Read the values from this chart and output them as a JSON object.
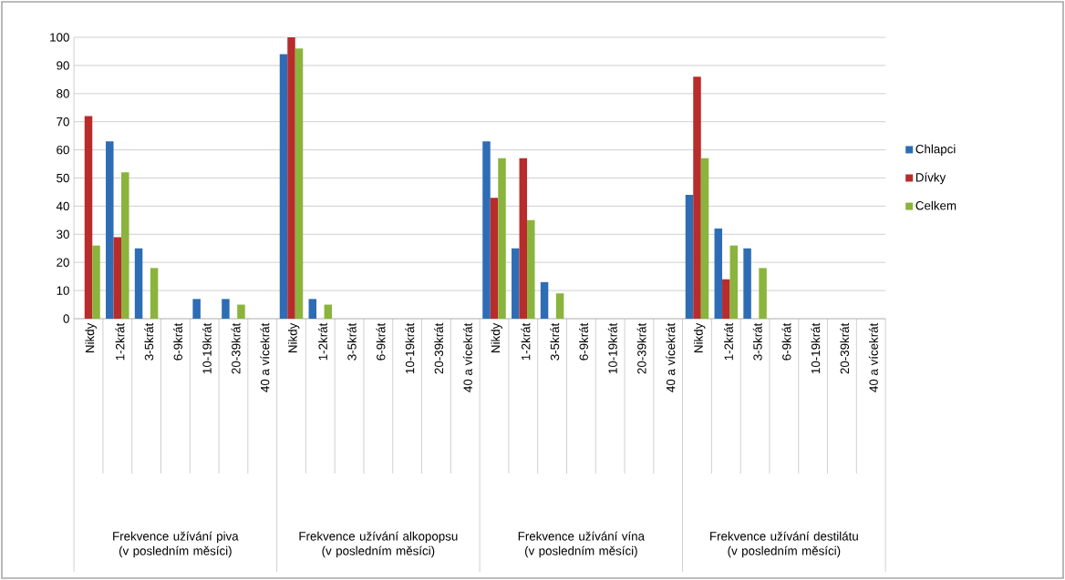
{
  "chart_data": {
    "type": "bar",
    "categories": [
      "Nikdy",
      "1-2krát",
      "3-5krát",
      "6-9krát",
      "10-19krát",
      "20-39krát",
      "40 a vícekrát",
      "Nikdy",
      "1-2krát",
      "3-5krát",
      "6-9krát",
      "10-19krát",
      "20-39krát",
      "40 a vícekrát",
      "Nikdy",
      "1-2krát",
      "3-5krát",
      "6-9krát",
      "10-19krát",
      "20-39krát",
      "40 a vícekrát",
      "Nikdy",
      "1-2krát",
      "3-5krát",
      "6-9krát",
      "10-19krát",
      "20-39krát",
      "40 a vícekrát"
    ],
    "series": [
      {
        "name": "Chlapci",
        "color": "#2e6db5",
        "values": [
          0,
          63,
          25,
          0,
          7,
          7,
          0,
          94,
          7,
          0,
          0,
          0,
          0,
          0,
          63,
          25,
          13,
          0,
          0,
          0,
          0,
          44,
          32,
          25,
          0,
          0,
          0,
          0
        ]
      },
      {
        "name": "Dívky",
        "color": "#b82c2c",
        "values": [
          72,
          29,
          0,
          0,
          0,
          0,
          0,
          100,
          0,
          0,
          0,
          0,
          0,
          0,
          43,
          57,
          0,
          0,
          0,
          0,
          0,
          86,
          14,
          0,
          0,
          0,
          0,
          0
        ]
      },
      {
        "name": "Celkem",
        "color": "#8ab43c",
        "values": [
          26,
          52,
          18,
          0,
          0,
          5,
          0,
          96,
          5,
          0,
          0,
          0,
          0,
          0,
          57,
          35,
          9,
          0,
          0,
          0,
          0,
          57,
          26,
          18,
          0,
          0,
          0,
          0
        ]
      }
    ],
    "annotations": [
      "Frekvence užívání piva (v posledním měsíci)",
      "Frekvence užívání alkopopsu (v posledním měsíci)",
      "Frekvence užívání vína (v posledním měsíci)",
      "Frekvence užívání destilátu (v posledním měsíci)"
    ],
    "ylim": [
      0,
      100
    ],
    "yticks": [
      0,
      10,
      20,
      30,
      40,
      50,
      60,
      70,
      80,
      90,
      100
    ],
    "grid": "y",
    "legend": "right"
  }
}
